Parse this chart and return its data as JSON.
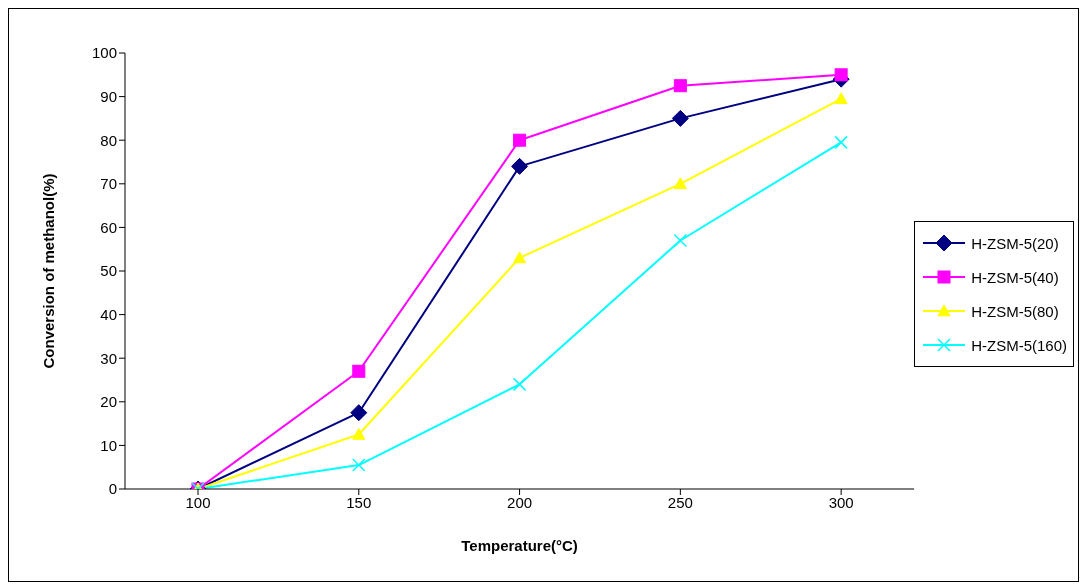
{
  "chart_data": {
    "type": "line",
    "xlabel": "Temperature(°C)",
    "ylabel": "Conversion of methanol(%)",
    "categories": [
      "100",
      "150",
      "200",
      "250",
      "300"
    ],
    "ylim": [
      0,
      100
    ],
    "yticks": [
      0,
      10,
      20,
      30,
      40,
      50,
      60,
      70,
      80,
      90,
      100
    ],
    "grid": false,
    "legend": "right",
    "line_style": "solid",
    "series": [
      {
        "name": "H-ZSM-5(20)",
        "color": "#000080",
        "marker": "diamond",
        "values": [
          0,
          17.5,
          74,
          85,
          94
        ]
      },
      {
        "name": "H-ZSM-5(40)",
        "color": "#ff00ff",
        "marker": "square",
        "values": [
          0,
          27,
          80,
          92.5,
          95
        ]
      },
      {
        "name": "H-ZSM-5(80)",
        "color": "#ffff00",
        "marker": "triangle",
        "values": [
          0,
          12.5,
          53,
          70,
          89.5
        ]
      },
      {
        "name": "H-ZSM-5(160)",
        "color": "#00ffff",
        "marker": "cross",
        "values": [
          0,
          5.5,
          24,
          57,
          79.5
        ]
      }
    ]
  }
}
